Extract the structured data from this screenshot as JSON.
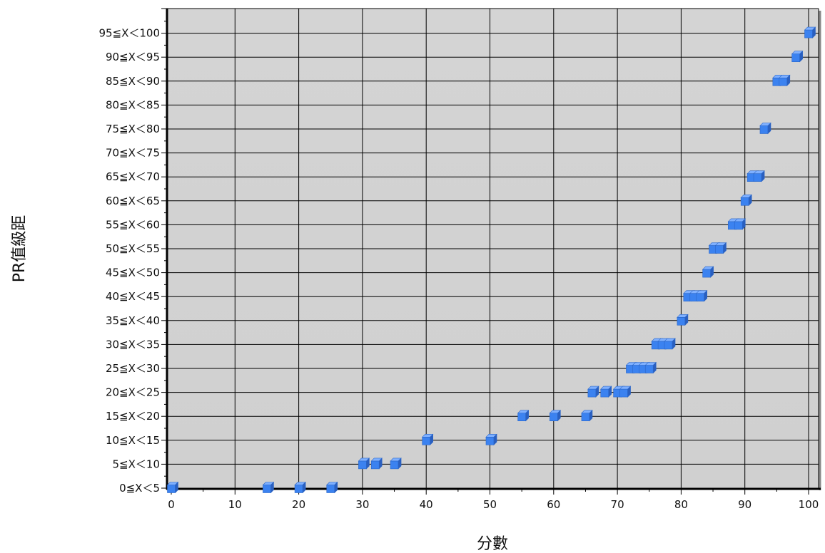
{
  "chart_data": {
    "type": "scatter",
    "title": "",
    "xlabel": "分數",
    "ylabel": "PR值級距",
    "xlim": [
      0,
      100
    ],
    "x_ticks": [
      0,
      10,
      20,
      30,
      40,
      50,
      60,
      70,
      80,
      90,
      100
    ],
    "y_categories": [
      "0≦X＜5",
      "5≦X＜10",
      "10≦X＜15",
      "15≦X＜20",
      "20≦X＜25",
      "25≦X＜30",
      "30≦X＜35",
      "35≦X＜40",
      "40≦X＜45",
      "45≦X＜50",
      "50≦X＜55",
      "55≦X＜60",
      "60≦X＜65",
      "65≦X＜70",
      "70≦X＜75",
      "75≦X＜80",
      "80≦X＜85",
      "85≦X＜90",
      "90≦X＜95",
      "95≦X＜100"
    ],
    "grid": true,
    "marker_color": "#3b82f0",
    "background_color": "#d3d3d3",
    "points": [
      {
        "x": 0,
        "y": "0≦X＜5"
      },
      {
        "x": 15,
        "y": "0≦X＜5"
      },
      {
        "x": 20,
        "y": "0≦X＜5"
      },
      {
        "x": 25,
        "y": "0≦X＜5"
      },
      {
        "x": 30,
        "y": "5≦X＜10"
      },
      {
        "x": 32,
        "y": "5≦X＜10"
      },
      {
        "x": 35,
        "y": "5≦X＜10"
      },
      {
        "x": 40,
        "y": "10≦X＜15"
      },
      {
        "x": 50,
        "y": "10≦X＜15"
      },
      {
        "x": 55,
        "y": "15≦X＜20"
      },
      {
        "x": 60,
        "y": "15≦X＜20"
      },
      {
        "x": 65,
        "y": "15≦X＜20"
      },
      {
        "x": 66,
        "y": "20≦X＜25"
      },
      {
        "x": 68,
        "y": "20≦X＜25"
      },
      {
        "x": 70,
        "y": "20≦X＜25"
      },
      {
        "x": 71,
        "y": "20≦X＜25"
      },
      {
        "x": 72,
        "y": "25≦X＜30"
      },
      {
        "x": 73,
        "y": "25≦X＜30"
      },
      {
        "x": 74,
        "y": "25≦X＜30"
      },
      {
        "x": 75,
        "y": "25≦X＜30"
      },
      {
        "x": 76,
        "y": "30≦X＜35"
      },
      {
        "x": 77,
        "y": "30≦X＜35"
      },
      {
        "x": 78,
        "y": "30≦X＜35"
      },
      {
        "x": 80,
        "y": "35≦X＜40"
      },
      {
        "x": 81,
        "y": "40≦X＜45"
      },
      {
        "x": 82,
        "y": "40≦X＜45"
      },
      {
        "x": 83,
        "y": "40≦X＜45"
      },
      {
        "x": 84,
        "y": "45≦X＜50"
      },
      {
        "x": 85,
        "y": "50≦X＜55"
      },
      {
        "x": 86,
        "y": "50≦X＜55"
      },
      {
        "x": 88,
        "y": "55≦X＜60"
      },
      {
        "x": 89,
        "y": "55≦X＜60"
      },
      {
        "x": 90,
        "y": "60≦X＜65"
      },
      {
        "x": 91,
        "y": "65≦X＜70"
      },
      {
        "x": 92,
        "y": "65≦X＜70"
      },
      {
        "x": 93,
        "y": "75≦X＜80"
      },
      {
        "x": 95,
        "y": "85≦X＜90"
      },
      {
        "x": 96,
        "y": "85≦X＜90"
      },
      {
        "x": 98,
        "y": "90≦X＜95"
      },
      {
        "x": 100,
        "y": "95≦X＜100"
      }
    ]
  }
}
